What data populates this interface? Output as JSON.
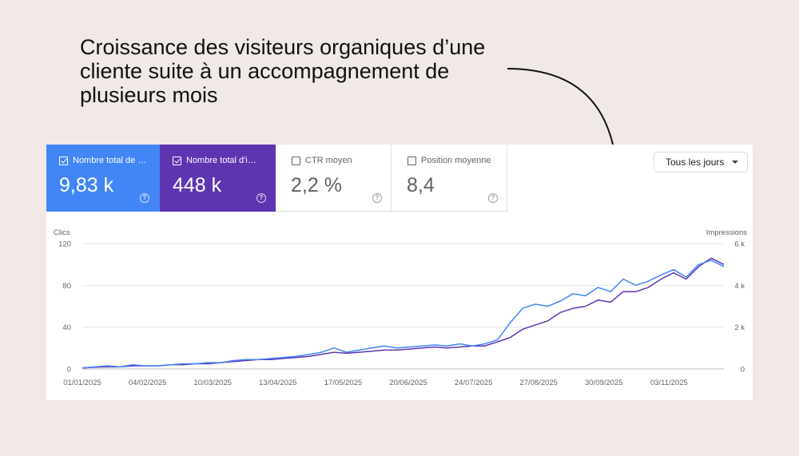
{
  "headline": "Croissance des visiteurs organiques d’une cliente suite à un accompagnement de plusieurs mois",
  "colors": {
    "clicks": "#4285f4",
    "impressions": "#5e35b1",
    "background": "#f0e9e6"
  },
  "metrics": [
    {
      "label": "Nombre total de …",
      "value": "9,83 k",
      "checked": true,
      "color": "#4285f4"
    },
    {
      "label": "Nombre total d'i…",
      "value": "448 k",
      "checked": true,
      "color": "#5e35b1"
    },
    {
      "label": "CTR moyen",
      "value": "2,2 %",
      "checked": false
    },
    {
      "label": "Position moyenne",
      "value": "8,4",
      "checked": false
    }
  ],
  "range_selector": {
    "label": "Tous les jours",
    "icon": "caret-down-icon"
  },
  "chart_data": {
    "type": "line",
    "left_axis": {
      "label": "Clics",
      "ticks": [
        "120",
        "80",
        "40",
        "0"
      ],
      "range": [
        0,
        120
      ]
    },
    "right_axis": {
      "label": "Impressions",
      "ticks": [
        "6 k",
        "4 k",
        "2 k",
        "0"
      ],
      "range": [
        0,
        6000
      ]
    },
    "x_ticks": [
      "01/01/2025",
      "04/02/2025",
      "10/03/2025",
      "13/04/2025",
      "17/05/2025",
      "20/06/2025",
      "24/07/2025",
      "27/08/2025",
      "30/09/2025",
      "03/11/2025"
    ],
    "series": [
      {
        "axis": "left",
        "color": "#4285f4",
        "values": [
          1,
          2,
          3,
          2,
          4,
          3,
          3,
          4,
          5,
          5,
          6,
          6,
          8,
          9,
          9,
          10,
          11,
          12,
          14,
          16,
          20,
          16,
          18,
          20,
          22,
          20,
          21,
          22,
          23,
          22,
          24,
          22,
          24,
          28,
          44,
          58,
          62,
          60,
          65,
          72,
          70,
          78,
          74,
          86,
          80,
          84,
          90,
          95,
          88,
          100,
          104,
          98
        ]
      },
      {
        "axis": "right",
        "color": "#5e35b1",
        "values": [
          50,
          80,
          100,
          100,
          150,
          150,
          150,
          200,
          200,
          250,
          250,
          300,
          350,
          400,
          450,
          450,
          500,
          550,
          600,
          700,
          800,
          750,
          800,
          850,
          900,
          900,
          950,
          1000,
          1050,
          1000,
          1050,
          1100,
          1100,
          1300,
          1500,
          1900,
          2100,
          2300,
          2700,
          2900,
          3000,
          3300,
          3200,
          3700,
          3700,
          3900,
          4300,
          4600,
          4300,
          4900,
          5300,
          5000
        ]
      }
    ]
  },
  "annotation": {
    "type": "arrow",
    "target": "chart-peak"
  }
}
